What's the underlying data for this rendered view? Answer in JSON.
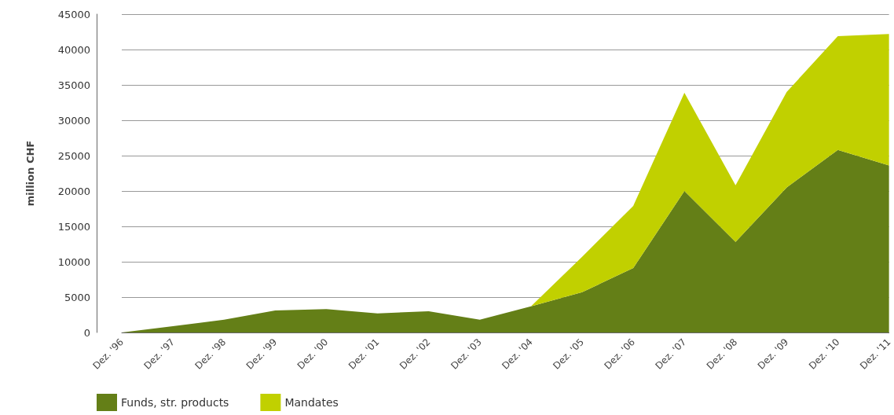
{
  "chart_data": {
    "type": "area",
    "stacked": true,
    "ylabel": "million CHF",
    "categories": [
      "Dez. '96",
      "Dez. '97",
      "Dez. '98",
      "Dez. '99",
      "Dez. '00",
      "Dez. '01",
      "Dez. '02",
      "Dez. '03",
      "Dez. '04",
      "Dez. '05",
      "Dez. '06",
      "Dez. '07",
      "Dez. '08",
      "Dez. '09",
      "Dez. '10",
      "Dez. '11"
    ],
    "series": [
      {
        "name": "Funds, str. products",
        "color": "#647f17",
        "values": [
          0,
          900,
          1800,
          3100,
          3300,
          2700,
          3000,
          1800,
          3700,
          5700,
          9100,
          20000,
          12800,
          20500,
          25800,
          23600
        ]
      },
      {
        "name": "Mandates",
        "color": "#c1d000",
        "values": [
          0,
          0,
          0,
          0,
          0,
          0,
          0,
          0,
          0,
          5000,
          8800,
          13900,
          8000,
          13500,
          16100,
          18600
        ]
      }
    ],
    "ylim": [
      0,
      45000
    ],
    "yticks": [
      0,
      5000,
      10000,
      15000,
      20000,
      25000,
      30000,
      35000,
      40000,
      45000
    ],
    "grid": "y",
    "legend": "bottom left"
  }
}
